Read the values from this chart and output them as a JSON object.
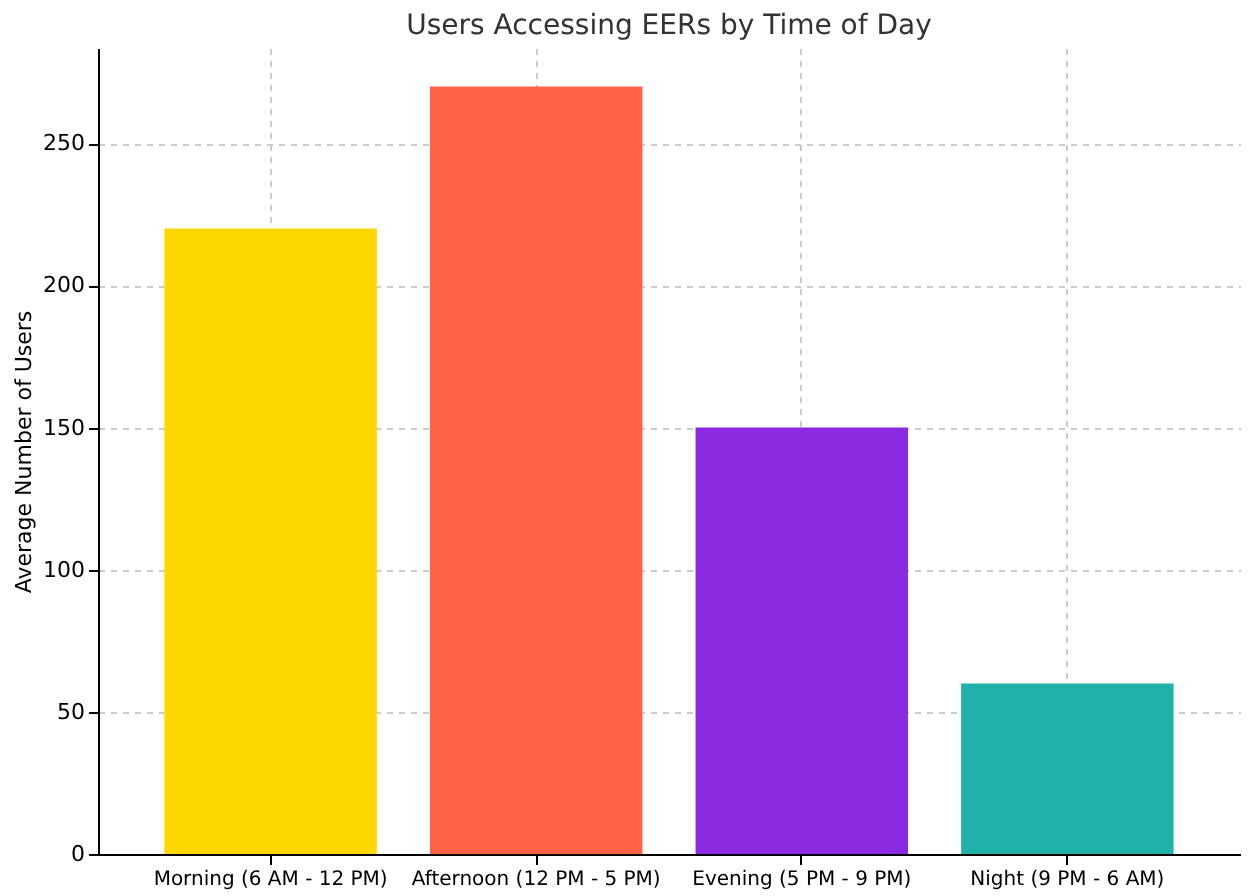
{
  "chart_data": {
    "type": "bar",
    "title": "Users Accessing EERs by Time of Day",
    "ylabel": "Average Number of Users",
    "categories": [
      "Morning (6 AM - 12 PM)",
      "Afternoon (12 PM - 5 PM)",
      "Evening (5 PM - 9 PM)",
      "Night (9 PM - 6 AM)"
    ],
    "values": [
      220,
      270,
      150,
      60
    ],
    "colors": [
      "#ffd700",
      "#ff6347",
      "#8a2be2",
      "#20b2aa"
    ],
    "ylim": [
      0,
      283.5
    ],
    "yticks": [
      0,
      50,
      100,
      150,
      200,
      250
    ],
    "grid": true
  }
}
